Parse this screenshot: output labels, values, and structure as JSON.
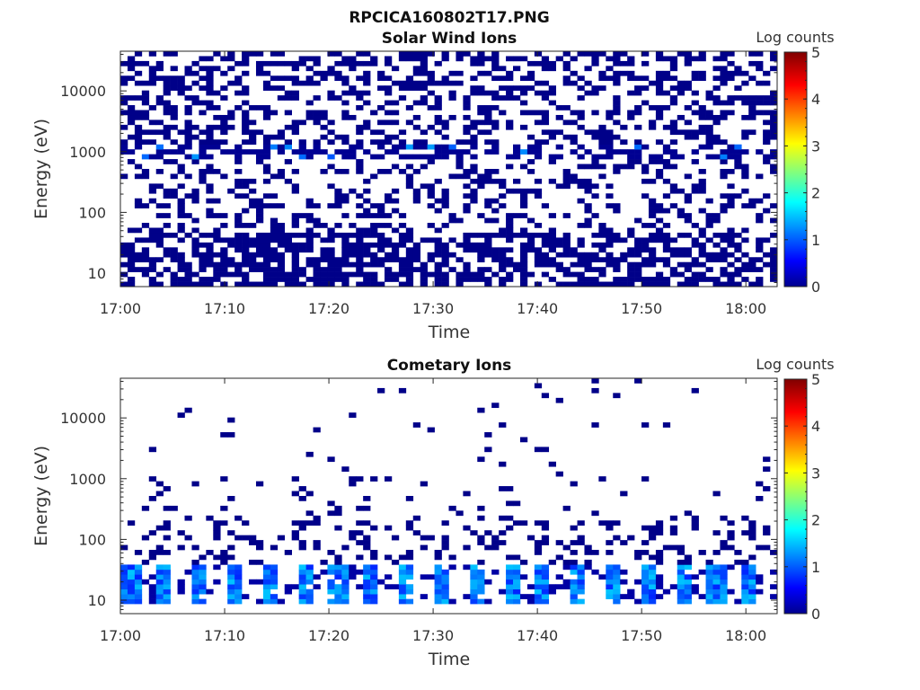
{
  "figure_title": "RPCICA160802T17.PNG",
  "colors": {
    "white": "#ffffff",
    "axis": "#262626"
  },
  "chart_data": [
    {
      "type": "heatmap",
      "title": "Solar Wind Ions",
      "xlabel": "Time",
      "ylabel": "Energy (eV)",
      "xlim": [
        "17:00",
        "18:03"
      ],
      "ylim": [
        6,
        45000
      ],
      "yscale": "log",
      "x_ticks": [
        "17:00",
        "17:10",
        "17:20",
        "17:30",
        "17:40",
        "17:50",
        "18:00"
      ],
      "y_ticks": [
        "10",
        "100",
        "1000",
        "10000"
      ],
      "y_tick_values": [
        10,
        100,
        1000,
        10000
      ],
      "colorbar": {
        "label": "Log counts",
        "ticks": [
          "0",
          "1",
          "2",
          "3",
          "4",
          "5"
        ],
        "range": [
          0,
          5
        ],
        "colormap": "jet"
      },
      "pattern": {
        "seed": 7,
        "high_energy_band": {
          "energy_min": 1200,
          "energy_max": 45000,
          "occupancy": 0.42,
          "level": 0.05
        },
        "mid_energy_band": {
          "energy_min": 700,
          "energy_max": 1200,
          "occupancy": 0.55,
          "level": 0.1,
          "peak_level": 1.6
        },
        "low_mid_band": {
          "energy_min": 45,
          "energy_max": 700,
          "occupancy": 0.3,
          "level": 0.05
        },
        "low_energy_band": {
          "energy_min": 6,
          "energy_max": 45,
          "occupancy": 0.62,
          "level": 0.05
        }
      }
    },
    {
      "type": "heatmap",
      "title": "Cometary Ions",
      "xlabel": "Time",
      "ylabel": "Energy (eV)",
      "xlim": [
        "17:00",
        "18:03"
      ],
      "ylim": [
        6,
        45000
      ],
      "yscale": "log",
      "x_ticks": [
        "17:00",
        "17:10",
        "17:20",
        "17:30",
        "17:40",
        "17:50",
        "18:00"
      ],
      "y_ticks": [
        "10",
        "100",
        "1000",
        "10000"
      ],
      "y_tick_values": [
        10,
        100,
        1000,
        10000
      ],
      "colorbar": {
        "label": "Log counts",
        "ticks": [
          "0",
          "1",
          "2",
          "3",
          "4",
          "5"
        ],
        "range": [
          0,
          5
        ],
        "colormap": "jet"
      },
      "pattern": {
        "seed": 23,
        "high_energy_band": {
          "energy_min": 1000,
          "energy_max": 45000,
          "occupancy": 0.02,
          "level": 0.05
        },
        "mid_energy_band": {
          "energy_min": 200,
          "energy_max": 1000,
          "occupancy": 0.07,
          "level": 0.05
        },
        "low_mid_band": {
          "energy_min": 40,
          "energy_max": 200,
          "occupancy": 0.22,
          "level": 0.05
        },
        "low_energy_band": {
          "energy_min": 8,
          "energy_max": 40,
          "occupancy": 0.5,
          "level": 0.2,
          "peak_level": 1.8,
          "periodic_minutes": 3.3
        }
      }
    }
  ]
}
